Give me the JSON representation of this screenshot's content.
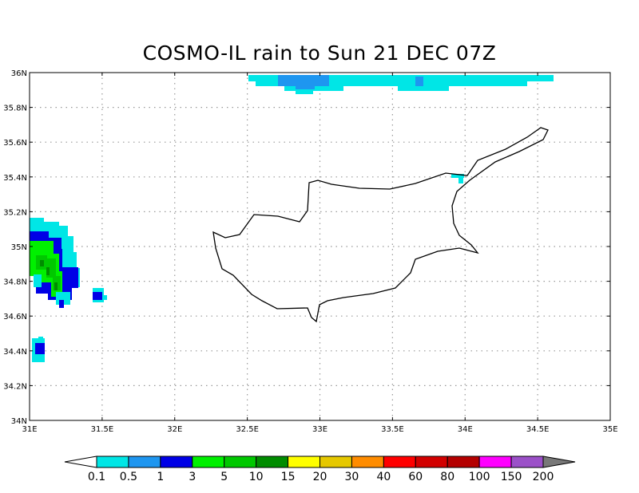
{
  "title": "COSMO-IL rain to Sun 21 DEC 07Z",
  "map": {
    "lon_range": [
      31,
      35
    ],
    "lat_range": [
      34,
      36
    ],
    "x_ticks": [
      "31E",
      "31.5E",
      "32E",
      "32.5E",
      "33E",
      "33.5E",
      "34E",
      "34.5E",
      "35E"
    ],
    "y_ticks": [
      "34N",
      "34.2N",
      "34.4N",
      "34.6N",
      "34.8N",
      "35N",
      "35.2N",
      "35.4N",
      "35.6N",
      "35.8N",
      "36N"
    ],
    "grid": true
  },
  "legend": {
    "levels": [
      "0.1",
      "0.5",
      "1",
      "3",
      "5",
      "10",
      "15",
      "20",
      "30",
      "40",
      "60",
      "80",
      "100",
      "150",
      "200"
    ],
    "colors": [
      "#00e6e6",
      "#1e96f0",
      "#0000e6",
      "#00f000",
      "#00c800",
      "#008c00",
      "#ffff00",
      "#e6c800",
      "#ff8c00",
      "#ff0000",
      "#d20000",
      "#b40000",
      "#ff00ff",
      "#9b50c8"
    ],
    "low_color": "#ffffff",
    "high_color": "#787878"
  }
}
